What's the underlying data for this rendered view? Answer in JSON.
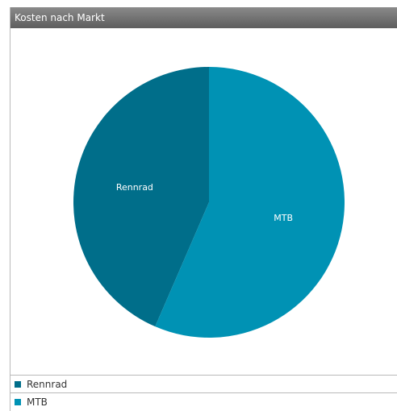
{
  "panel": {
    "title": "Kosten nach Markt"
  },
  "chart_data": {
    "type": "pie",
    "title": "Kosten nach Markt",
    "categories": [
      "Rennrad",
      "MTB"
    ],
    "values": [
      43.5,
      56.5
    ],
    "colors": [
      "#006e8a",
      "#0092b4"
    ],
    "legend_position": "bottom"
  }
}
